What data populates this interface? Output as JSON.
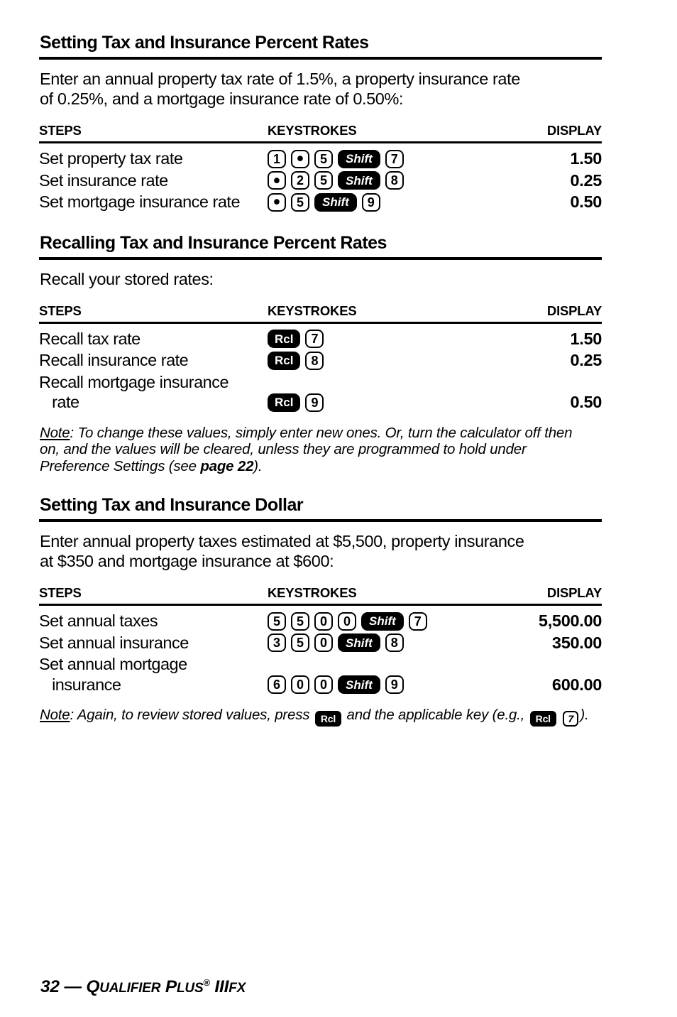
{
  "cols": {
    "steps": "STEPS",
    "keystrokes": "KEYSTROKES",
    "display": "DISPLAY"
  },
  "s1": {
    "title": "Setting Tax and Insurance Percent Rates",
    "intro": "Enter an annual property tax rate of 1.5%, a property insurance rate\nof 0.25%, and a mortgage insurance rate of 0.50%:",
    "rows": [
      {
        "step": "Set property tax rate",
        "keys": [
          "1",
          "•",
          "5",
          "Shift",
          "7"
        ],
        "display": "1.50"
      },
      {
        "step": "Set insurance rate",
        "keys": [
          "•",
          "2",
          "5",
          "Shift",
          "8"
        ],
        "display": "0.25"
      },
      {
        "step": "Set mortgage insurance rate",
        "keys": [
          "•",
          "5",
          "Shift",
          "9"
        ],
        "display": "0.50"
      }
    ]
  },
  "s2": {
    "title": "Recalling Tax and Insurance Percent Rates",
    "intro": "Recall your stored rates:",
    "rows": [
      {
        "step": "Recall tax rate",
        "keys": [
          "Rcl",
          "7"
        ],
        "display": "1.50"
      },
      {
        "step": "Recall insurance rate",
        "keys": [
          "Rcl",
          "8"
        ],
        "display": "0.25"
      },
      {
        "step": "Recall mortgage insurance\n   rate",
        "keys": [
          "Rcl",
          "9"
        ],
        "display": "0.50"
      }
    ]
  },
  "note1": {
    "label": "Note",
    "body": ": To change these values, simply enter new ones. Or, turn the calculator off then\non, and the values will be cleared, unless they are programmed to hold under\nPreference Settings (see ",
    "bold": "page 22",
    "end": ")."
  },
  "s3": {
    "title": "Setting Tax and Insurance Dollar",
    "intro": "Enter annual property taxes estimated at $5,500, property insurance\nat $350 and mortgage insurance at $600:",
    "rows": [
      {
        "step": "Set annual taxes",
        "keys": [
          "5",
          "5",
          "0",
          "0",
          "Shift",
          "7"
        ],
        "display": "5,500.00"
      },
      {
        "step": "Set annual insurance",
        "keys": [
          "3",
          "5",
          "0",
          "Shift",
          "8"
        ],
        "display": "350.00"
      },
      {
        "step": "Set annual mortgage\n   insurance",
        "keys": [
          "6",
          "0",
          "0",
          "Shift",
          "9"
        ],
        "display": "600.00"
      }
    ]
  },
  "note2": {
    "label": "Note",
    "p1": ": Again, to review stored values, press ",
    "key1": "Rcl",
    "p2": " and the applicable key (e.g., ",
    "key2": "Rcl",
    "key3": "7",
    "p3": ")."
  },
  "footer": {
    "lead": "32 — ",
    "q": "Q",
    "ualifier": "UALIFIER",
    "sp": " ",
    "p": "P",
    "lus": "LUS",
    "reg": "®",
    "iii": " III",
    "fx": "FX"
  }
}
